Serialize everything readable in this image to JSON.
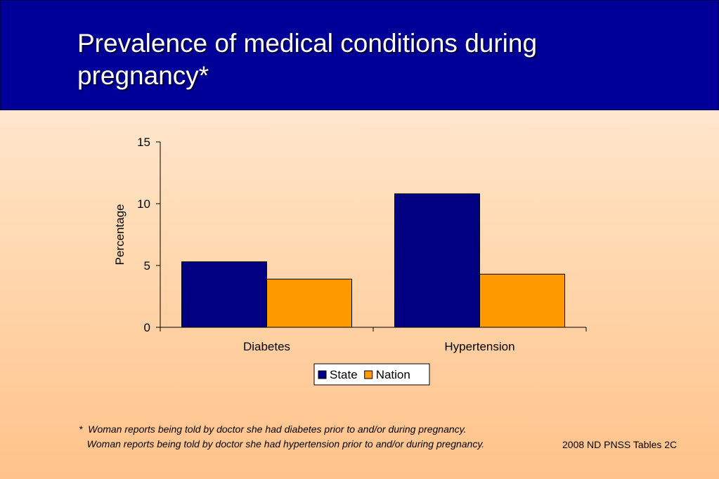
{
  "slide": {
    "title": "Prevalence of medical conditions during pregnancy*",
    "header_color": "#000099",
    "footnote_line1": "*  Woman reports being told by doctor she had diabetes prior to and/or during pregnancy.",
    "footnote_line2": "   Woman reports being told by doctor she had hypertension prior to and/or during pregnancy.",
    "source": "2008 ND PNSS Tables 2C"
  },
  "chart_data": {
    "type": "bar",
    "categories": [
      "Diabetes",
      "Hypertension"
    ],
    "series": [
      {
        "name": "State",
        "values": [
          5.3,
          10.8
        ],
        "color": "#000080"
      },
      {
        "name": "Nation",
        "values": [
          3.9,
          4.3
        ],
        "color": "#ff9900"
      }
    ],
    "title": "",
    "xlabel": "",
    "ylabel": "Percentage",
    "ylim": [
      0,
      15
    ],
    "yticks": [
      "0",
      "5",
      "10",
      "15"
    ],
    "grid": false,
    "legend": "bottom"
  }
}
